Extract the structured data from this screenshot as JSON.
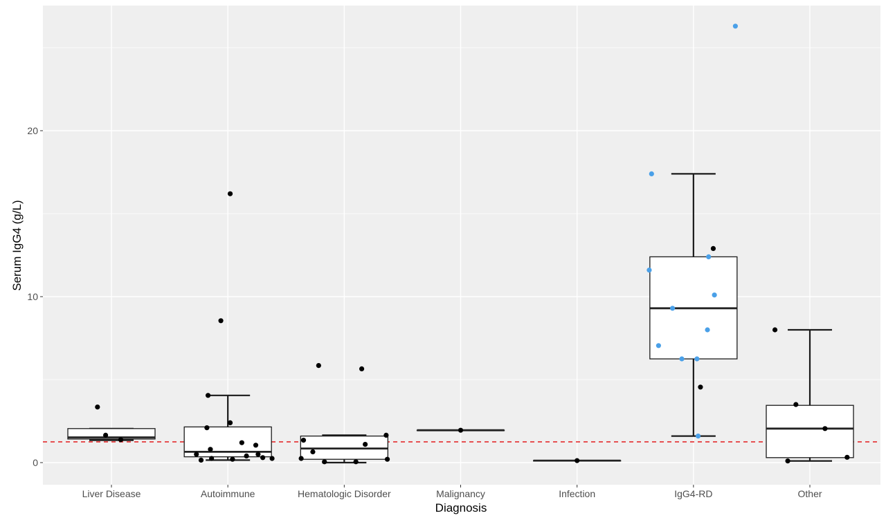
{
  "chart_data": {
    "type": "box",
    "title": "",
    "xlabel": "Diagnosis",
    "ylabel": "Serum IgG4 (g/L)",
    "ylim": [
      -1.0,
      27.6
    ],
    "yticks": [
      0,
      10,
      20
    ],
    "ytick_labels": [
      "0",
      "10",
      "20"
    ],
    "reference_line": {
      "value": 1.25,
      "color": "#e41a1c",
      "style": "dashed"
    },
    "colors": {
      "panel_bg": "#efefef",
      "grid_major": "#ffffff",
      "box_fill": "#ffffff",
      "box_stroke": "#1a1a1a",
      "point_default": "#000000",
      "point_highlight": "#4aa0e8"
    },
    "categories": [
      "Liver Disease",
      "Autoimmune",
      "Hematologic Disorder",
      "Malignancy",
      "Infection",
      "IgG4-RD",
      "Other"
    ],
    "boxes": [
      {
        "category": "Liver Disease",
        "whisker_low": 1.35,
        "q1": 1.42,
        "median": 1.52,
        "q3": 2.05,
        "whisker_high": 2.05
      },
      {
        "category": "Autoimmune",
        "whisker_low": 0.15,
        "q1": 0.35,
        "median": 0.65,
        "q3": 2.15,
        "whisker_high": 4.05
      },
      {
        "category": "Hematologic Disorder",
        "whisker_low": 0.0,
        "q1": 0.2,
        "median": 0.85,
        "q3": 1.6,
        "whisker_high": 1.65
      },
      {
        "category": "Malignancy",
        "whisker_low": 1.95,
        "q1": 1.95,
        "median": 1.95,
        "q3": 1.95,
        "whisker_high": 1.95
      },
      {
        "category": "Infection",
        "whisker_low": 0.12,
        "q1": 0.12,
        "median": 0.12,
        "q3": 0.12,
        "whisker_high": 0.12
      },
      {
        "category": "IgG4-RD",
        "whisker_low": 1.6,
        "q1": 6.25,
        "median": 9.3,
        "q3": 12.4,
        "whisker_high": 17.4
      },
      {
        "category": "Other",
        "whisker_low": 0.1,
        "q1": 0.3,
        "median": 2.05,
        "q3": 3.45,
        "whisker_high": 8.0
      }
    ],
    "points": [
      {
        "category": "Liver Disease",
        "offset": -0.12,
        "y": 3.35,
        "group": "default"
      },
      {
        "category": "Liver Disease",
        "offset": -0.05,
        "y": 1.65,
        "group": "default"
      },
      {
        "category": "Liver Disease",
        "offset": 0.08,
        "y": 1.38,
        "group": "default"
      },
      {
        "category": "Autoimmune",
        "offset": -0.18,
        "y": 2.1,
        "group": "default"
      },
      {
        "category": "Autoimmune",
        "offset": -0.17,
        "y": 4.05,
        "group": "default"
      },
      {
        "category": "Autoimmune",
        "offset": -0.27,
        "y": 0.5,
        "group": "default"
      },
      {
        "category": "Autoimmune",
        "offset": -0.23,
        "y": 0.15,
        "group": "default"
      },
      {
        "category": "Autoimmune",
        "offset": -0.15,
        "y": 0.8,
        "group": "default"
      },
      {
        "category": "Autoimmune",
        "offset": -0.14,
        "y": 0.25,
        "group": "default"
      },
      {
        "category": "Autoimmune",
        "offset": -0.06,
        "y": 8.55,
        "group": "default"
      },
      {
        "category": "Autoimmune",
        "offset": 0.02,
        "y": 2.4,
        "group": "default"
      },
      {
        "category": "Autoimmune",
        "offset": 0.02,
        "y": 16.2,
        "group": "default"
      },
      {
        "category": "Autoimmune",
        "offset": 0.04,
        "y": 0.2,
        "group": "default"
      },
      {
        "category": "Autoimmune",
        "offset": 0.12,
        "y": 1.2,
        "group": "default"
      },
      {
        "category": "Autoimmune",
        "offset": 0.16,
        "y": 0.4,
        "group": "default"
      },
      {
        "category": "Autoimmune",
        "offset": 0.24,
        "y": 1.05,
        "group": "default"
      },
      {
        "category": "Autoimmune",
        "offset": 0.26,
        "y": 0.5,
        "group": "default"
      },
      {
        "category": "Autoimmune",
        "offset": 0.3,
        "y": 0.3,
        "group": "default"
      },
      {
        "category": "Autoimmune",
        "offset": 0.38,
        "y": 0.25,
        "group": "default"
      },
      {
        "category": "Hematologic Disorder",
        "offset": -0.37,
        "y": 0.25,
        "group": "default"
      },
      {
        "category": "Hematologic Disorder",
        "offset": -0.35,
        "y": 1.35,
        "group": "default"
      },
      {
        "category": "Hematologic Disorder",
        "offset": -0.27,
        "y": 0.65,
        "group": "default"
      },
      {
        "category": "Hematologic Disorder",
        "offset": -0.22,
        "y": 5.85,
        "group": "default"
      },
      {
        "category": "Hematologic Disorder",
        "offset": -0.17,
        "y": 0.05,
        "group": "default"
      },
      {
        "category": "Hematologic Disorder",
        "offset": 0.1,
        "y": 0.05,
        "group": "default"
      },
      {
        "category": "Hematologic Disorder",
        "offset": 0.15,
        "y": 5.65,
        "group": "default"
      },
      {
        "category": "Hematologic Disorder",
        "offset": 0.18,
        "y": 1.1,
        "group": "default"
      },
      {
        "category": "Hematologic Disorder",
        "offset": 0.36,
        "y": 1.65,
        "group": "default"
      },
      {
        "category": "Hematologic Disorder",
        "offset": 0.37,
        "y": 0.2,
        "group": "default"
      },
      {
        "category": "Malignancy",
        "offset": 0.0,
        "y": 1.95,
        "group": "default"
      },
      {
        "category": "Infection",
        "offset": 0.0,
        "y": 0.12,
        "group": "default"
      },
      {
        "category": "IgG4-RD",
        "offset": -0.38,
        "y": 11.6,
        "group": "highlight"
      },
      {
        "category": "IgG4-RD",
        "offset": -0.36,
        "y": 17.4,
        "group": "highlight"
      },
      {
        "category": "IgG4-RD",
        "offset": -0.3,
        "y": 7.05,
        "group": "highlight"
      },
      {
        "category": "IgG4-RD",
        "offset": -0.18,
        "y": 9.3,
        "group": "highlight"
      },
      {
        "category": "IgG4-RD",
        "offset": -0.1,
        "y": 6.25,
        "group": "highlight"
      },
      {
        "category": "IgG4-RD",
        "offset": 0.03,
        "y": 6.25,
        "group": "highlight"
      },
      {
        "category": "IgG4-RD",
        "offset": 0.04,
        "y": 1.6,
        "group": "highlight"
      },
      {
        "category": "IgG4-RD",
        "offset": 0.12,
        "y": 8.0,
        "group": "highlight"
      },
      {
        "category": "IgG4-RD",
        "offset": 0.13,
        "y": 12.4,
        "group": "highlight"
      },
      {
        "category": "IgG4-RD",
        "offset": 0.18,
        "y": 10.1,
        "group": "highlight"
      },
      {
        "category": "IgG4-RD",
        "offset": 0.36,
        "y": 26.3,
        "group": "highlight"
      },
      {
        "category": "IgG4-RD",
        "offset": 0.17,
        "y": 12.9,
        "group": "default"
      },
      {
        "category": "IgG4-RD",
        "offset": 0.06,
        "y": 4.55,
        "group": "default"
      },
      {
        "category": "Other",
        "offset": -0.3,
        "y": 8.0,
        "group": "default"
      },
      {
        "category": "Other",
        "offset": -0.19,
        "y": 0.1,
        "group": "default"
      },
      {
        "category": "Other",
        "offset": -0.12,
        "y": 3.5,
        "group": "default"
      },
      {
        "category": "Other",
        "offset": 0.13,
        "y": 2.05,
        "group": "default"
      },
      {
        "category": "Other",
        "offset": 0.32,
        "y": 0.32,
        "group": "default"
      }
    ]
  }
}
